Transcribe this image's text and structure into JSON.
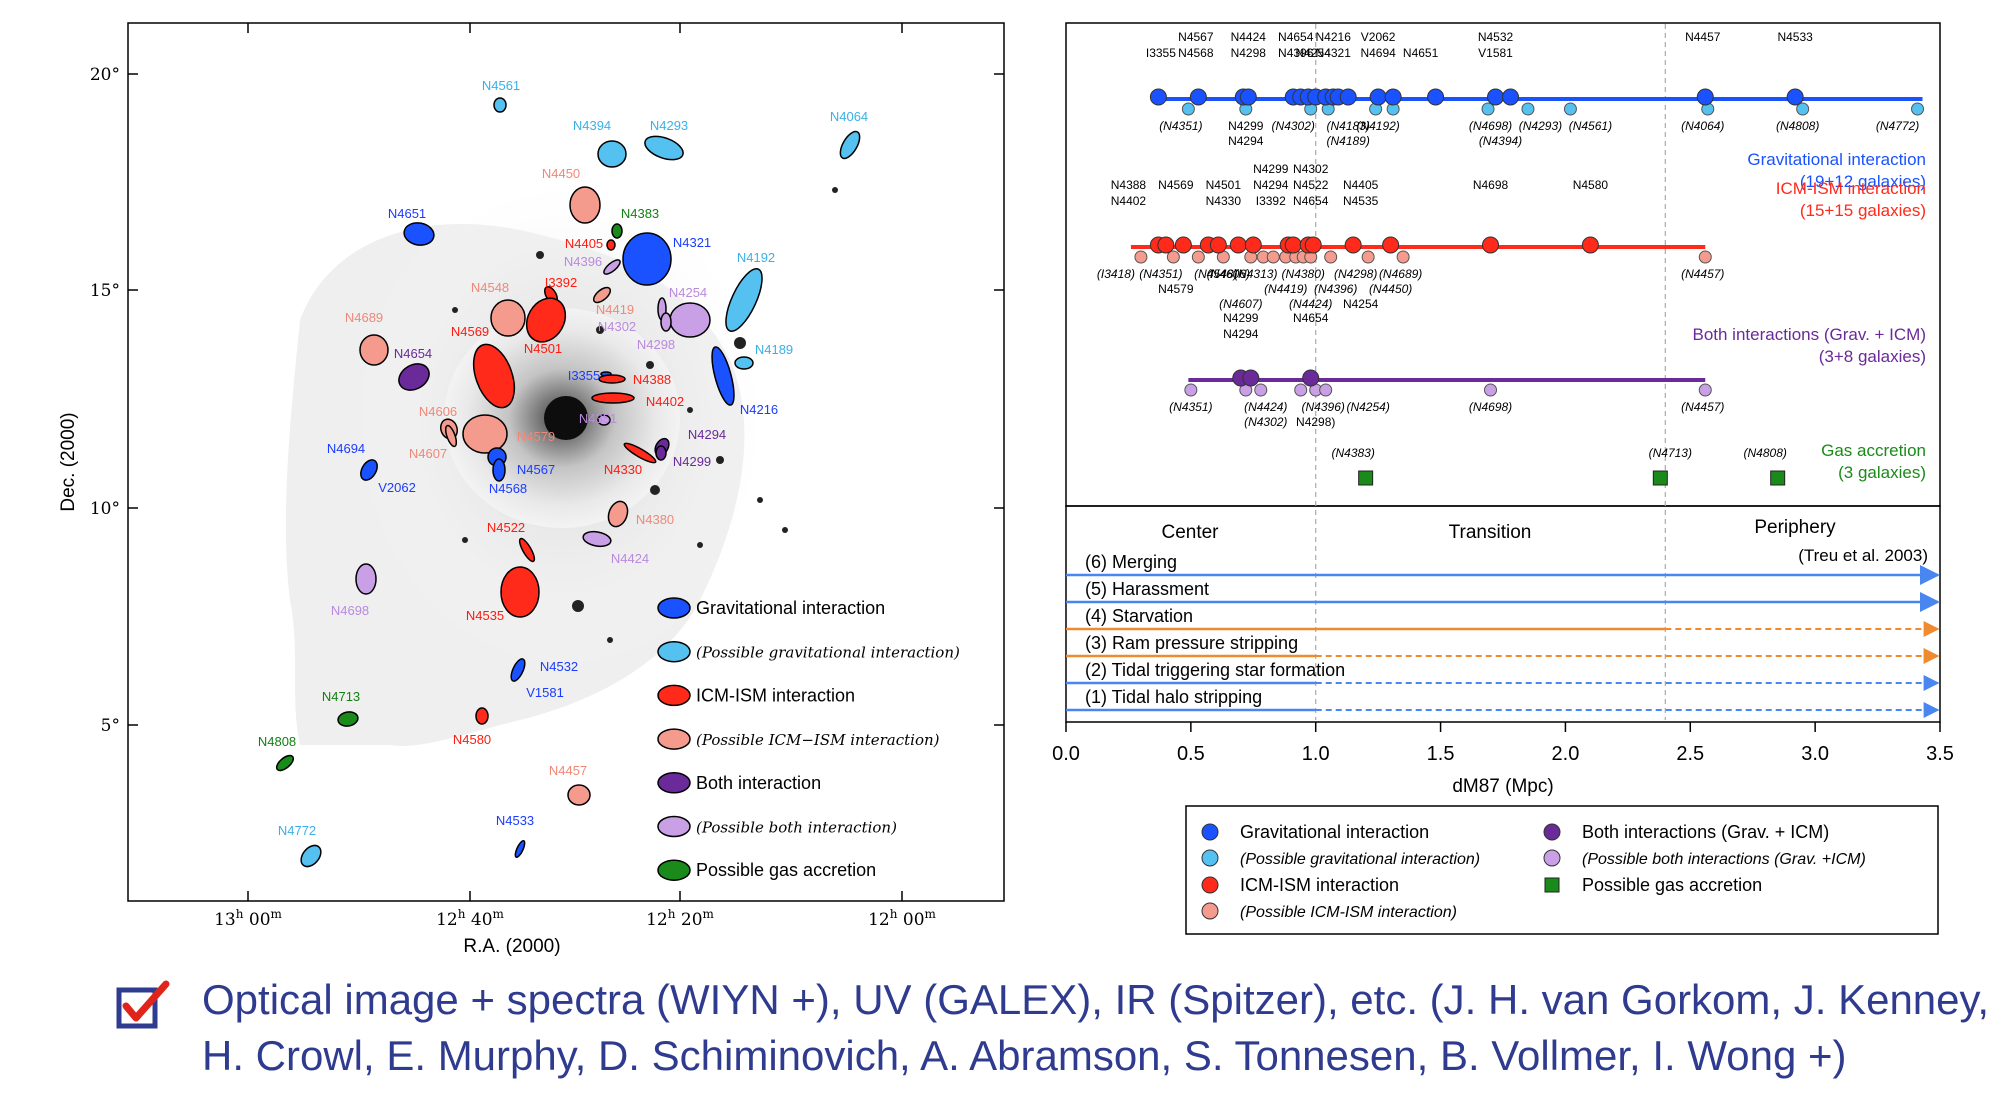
{
  "left_panel": {
    "xlabel": "R.A. (2000)",
    "ylabel": "Dec. (2000)",
    "yticks": [
      {
        "label": "20°",
        "dec": 20
      },
      {
        "label": "15°",
        "dec": 15
      },
      {
        "label": "10°",
        "dec": 10
      },
      {
        "label": "5°",
        "dec": 5
      }
    ],
    "xticks": [
      {
        "h": "13",
        "m": "00",
        "ra": 780
      },
      {
        "h": "12",
        "m": "40",
        "ra": 760
      },
      {
        "h": "12",
        "m": "20",
        "ra": 740
      },
      {
        "h": "12",
        "m": "00",
        "ra": 720
      }
    ],
    "hour_sup": "h",
    "min_sup": "m",
    "legend": [
      {
        "label": "Gravitational interaction",
        "italic": false,
        "color": "#1a52ff"
      },
      {
        "label": "(Possible gravitational interaction)",
        "italic": true,
        "color": "#55c1f0"
      },
      {
        "label": "ICM-ISM interaction",
        "italic": false,
        "color": "#ff2a1a"
      },
      {
        "label": "(Possible ICM−ISM interaction)",
        "italic": true,
        "color": "#f59b8e"
      },
      {
        "label": "Both interaction",
        "italic": false,
        "color": "#6a2a9a"
      },
      {
        "label": "(Possible both interaction)",
        "italic": true,
        "color": "#c9a0e6"
      },
      {
        "label": "Possible gas accretion",
        "italic": false,
        "color": "#1a8a1a"
      }
    ],
    "galaxies": [
      {
        "name": "N4561",
        "cls": "pg"
      },
      {
        "name": "N4394",
        "cls": "pg"
      },
      {
        "name": "N4293",
        "cls": "pg"
      },
      {
        "name": "N4064",
        "cls": "pg"
      },
      {
        "name": "N4651",
        "cls": "g"
      },
      {
        "name": "N4450",
        "cls": "pi"
      },
      {
        "name": "N4383",
        "cls": "a"
      },
      {
        "name": "N4405",
        "cls": "i"
      },
      {
        "name": "N4321",
        "cls": "g"
      },
      {
        "name": "N4396",
        "cls": "pb"
      },
      {
        "name": "N4192",
        "cls": "pg"
      },
      {
        "name": "N4548",
        "cls": "pi"
      },
      {
        "name": "I3392",
        "cls": "i"
      },
      {
        "name": "N4419",
        "cls": "pi"
      },
      {
        "name": "N4254",
        "cls": "pb"
      },
      {
        "name": "N4689",
        "cls": "pi"
      },
      {
        "name": "N4569",
        "cls": "i"
      },
      {
        "name": "N4501",
        "cls": "i"
      },
      {
        "name": "N4302",
        "cls": "pb"
      },
      {
        "name": "N4298",
        "cls": "pb"
      },
      {
        "name": "N4189",
        "cls": "pg"
      },
      {
        "name": "N4654",
        "cls": "b"
      },
      {
        "name": "I3355",
        "cls": "g"
      },
      {
        "name": "N4388",
        "cls": "i"
      },
      {
        "name": "N4216",
        "cls": "g"
      },
      {
        "name": "N4606",
        "cls": "pi"
      },
      {
        "name": "N4402",
        "cls": "i"
      },
      {
        "name": "N4351",
        "cls": "pb"
      },
      {
        "name": "N4294",
        "cls": "b"
      },
      {
        "name": "N4607",
        "cls": "pi"
      },
      {
        "name": "N4579",
        "cls": "pi"
      },
      {
        "name": "N4694",
        "cls": "g"
      },
      {
        "name": "N4299",
        "cls": "b"
      },
      {
        "name": "N4567",
        "cls": "g"
      },
      {
        "name": "N4330",
        "cls": "i"
      },
      {
        "name": "V2062",
        "cls": "g"
      },
      {
        "name": "N4568",
        "cls": "g"
      },
      {
        "name": "N4380",
        "cls": "pi"
      },
      {
        "name": "N4522",
        "cls": "i"
      },
      {
        "name": "N4424",
        "cls": "pb"
      },
      {
        "name": "N4698",
        "cls": "pb"
      },
      {
        "name": "N4535",
        "cls": "i"
      },
      {
        "name": "N4532",
        "cls": "g"
      },
      {
        "name": "V1581",
        "cls": "g"
      },
      {
        "name": "N4713",
        "cls": "a"
      },
      {
        "name": "N4580",
        "cls": "i"
      },
      {
        "name": "N4808",
        "cls": "a"
      },
      {
        "name": "N4457",
        "cls": "pi"
      },
      {
        "name": "N4533",
        "cls": "g"
      },
      {
        "name": "N4772",
        "cls": "pg"
      }
    ]
  },
  "chart_data": {
    "type": "scatter",
    "xlabel": "dM87 (Mpc)",
    "xlim": [
      0,
      3.5
    ],
    "xticks": [
      "0.0",
      "0.5",
      "1.0",
      "1.5",
      "2.0",
      "2.5",
      "3.0",
      "3.5"
    ],
    "zone_boundaries": [
      1.0,
      2.4
    ],
    "zones": [
      "Center",
      "Transition",
      "Periphery"
    ],
    "series": [
      {
        "name": "Gravitational interaction",
        "count": "(19+12 galaxies)",
        "color": "#1a52ff",
        "line_x": [
          0.35,
          3.43
        ],
        "above_labels": [
          {
            "x": 0.52,
            "lines": [
              "N4567",
              "N4568"
            ]
          },
          {
            "x": 0.38,
            "lines": [
              "",
              "I3355"
            ]
          },
          {
            "x": 0.73,
            "lines": [
              "N4424",
              "N4298"
            ]
          },
          {
            "x": 0.92,
            "lines": [
              "N4654",
              "N4396"
            ]
          },
          {
            "x": 1.07,
            "lines": [
              "N4216",
              "N4321"
            ]
          },
          {
            "x": 1.25,
            "lines": [
              "V2062",
              "N4694"
            ]
          },
          {
            "x": 1.42,
            "lines": [
              "",
              "N4651"
            ]
          },
          {
            "x": 1.72,
            "lines": [
              "N4532",
              "V1581"
            ]
          },
          {
            "x": 0.99,
            "lines": [
              "",
              "",
              "N4254"
            ]
          },
          {
            "x": 2.55,
            "lines": [
              "N4457"
            ]
          },
          {
            "x": 2.92,
            "lines": [
              "N4533"
            ]
          }
        ],
        "below_labels": [
          {
            "x": 0.46,
            "text": "(N4351)"
          },
          {
            "x": 0.72,
            "text": "N4299"
          },
          {
            "x": 0.72,
            "text": "N4294",
            "row": 2
          },
          {
            "x": 0.91,
            "text": "(N4302)"
          },
          {
            "x": 1.13,
            "text": "(N4183)"
          },
          {
            "x": 1.25,
            "text": "(N4192)"
          },
          {
            "x": 1.13,
            "text": "(N4189)",
            "row": 2
          },
          {
            "x": 1.7,
            "text": "(N4698)"
          },
          {
            "x": 1.9,
            "text": "(N4293)"
          },
          {
            "x": 2.1,
            "text": "(N4561)"
          },
          {
            "x": 1.74,
            "text": "(N4394)",
            "row": 2
          },
          {
            "x": 2.55,
            "text": "(N4064)"
          },
          {
            "x": 2.93,
            "text": "(N4808)"
          },
          {
            "x": 3.33,
            "text": "(N4772)"
          }
        ],
        "points": [
          0.37,
          0.53,
          0.71,
          0.73,
          0.91,
          0.94,
          0.97,
          1.0,
          1.04,
          1.07,
          1.09,
          1.13,
          1.25,
          1.31,
          1.48,
          1.72,
          1.78,
          2.56,
          2.92
        ],
        "possible": [
          0.49,
          0.72,
          0.98,
          1.05,
          1.24,
          1.31,
          1.69,
          1.85,
          2.02,
          2.57,
          2.95,
          3.41
        ]
      },
      {
        "name": "ICM-ISM interaction",
        "count": "(15+15 galaxies)",
        "color": "#ff2a1a",
        "line_x": [
          0.26,
          2.56
        ],
        "above_labels": [
          {
            "x": 0.25,
            "lines": [
              "N4388",
              "N4402"
            ]
          },
          {
            "x": 0.44,
            "lines": [
              "N4569",
              ""
            ]
          },
          {
            "x": 0.63,
            "lines": [
              "N4501",
              "N4330"
            ]
          },
          {
            "x": 0.82,
            "lines": [
              "N4299",
              "N4294",
              "I3392"
            ]
          },
          {
            "x": 0.98,
            "lines": [
              "N4302",
              "N4522",
              "N4654"
            ]
          },
          {
            "x": 1.18,
            "lines": [
              "N4405",
              "N4535"
            ]
          },
          {
            "x": 1.7,
            "lines": [
              "N4698"
            ]
          },
          {
            "x": 2.1,
            "lines": [
              "N4580"
            ]
          }
        ],
        "below_labels": [
          {
            "x": 0.2,
            "text": "(I3418)"
          },
          {
            "x": 0.38,
            "text": "(N4351)"
          },
          {
            "x": 0.6,
            "text": "(N4548)"
          },
          {
            "x": 0.76,
            "text": "(N4313)"
          },
          {
            "x": 0.95,
            "text": "(N4380)"
          },
          {
            "x": 1.16,
            "text": "(N4298)"
          },
          {
            "x": 1.34,
            "text": "(N4689)"
          },
          {
            "x": 0.44,
            "text": "N4579",
            "row": 2
          },
          {
            "x": 0.65,
            "text": "(N4606)"
          },
          {
            "x": 0.88,
            "text": "(N4419)",
            "row": 2
          },
          {
            "x": 1.08,
            "text": "(N4396)",
            "row": 2
          },
          {
            "x": 1.3,
            "text": "(N4450)",
            "row": 2
          },
          {
            "x": 0.7,
            "text": "(N4607)",
            "row": 3
          },
          {
            "x": 0.98,
            "text": "(N4424)",
            "row": 3
          },
          {
            "x": 1.18,
            "text": "N4254",
            "row": 3
          },
          {
            "x": 2.55,
            "text": "(N4457)"
          }
        ],
        "points": [
          0.37,
          0.4,
          0.47,
          0.57,
          0.61,
          0.69,
          0.75,
          0.89,
          0.91,
          0.97,
          0.99,
          1.15,
          1.3,
          1.7,
          2.1
        ],
        "possible": [
          0.3,
          0.43,
          0.53,
          0.63,
          0.74,
          0.79,
          0.83,
          0.88,
          0.92,
          0.95,
          0.98,
          1.06,
          1.21,
          1.35,
          2.56
        ]
      },
      {
        "name": "Both interactions (Grav. + ICM)",
        "count": "(3+8 galaxies)",
        "color": "#6a2a9a",
        "line_x": [
          0.49,
          2.56
        ],
        "above_labels": [
          {
            "x": 0.7,
            "lines": [
              "N4299",
              "N4294"
            ]
          },
          {
            "x": 0.98,
            "lines": [
              "N4654"
            ]
          }
        ],
        "below_labels": [
          {
            "x": 0.5,
            "text": "(N4351)"
          },
          {
            "x": 0.8,
            "text": "(N4424)"
          },
          {
            "x": 0.8,
            "text": "(N4302)",
            "row": 2
          },
          {
            "x": 1.03,
            "text": "(N4396)"
          },
          {
            "x": 1.0,
            "text": "N4298)",
            "row": 2
          },
          {
            "x": 1.21,
            "text": "(N4254)"
          },
          {
            "x": 1.7,
            "text": "(N4698)"
          },
          {
            "x": 2.55,
            "text": "(N4457)"
          }
        ],
        "points": [
          0.7,
          0.74,
          0.98
        ],
        "possible": [
          0.5,
          0.72,
          0.78,
          0.94,
          1.0,
          1.04,
          1.7,
          2.56
        ]
      },
      {
        "name": "Gas accretion",
        "count": "(3 galaxies)",
        "color": "#1a8a1a",
        "above_labels": [
          {
            "x": 1.15,
            "text": "(N4383)"
          },
          {
            "x": 2.42,
            "text": "(N4713)"
          },
          {
            "x": 2.8,
            "text": "(N4808)"
          }
        ],
        "points": [
          1.2,
          2.38,
          2.85
        ]
      }
    ],
    "mechanisms": [
      {
        "label": "(6) Merging",
        "color": "#4a86f0",
        "solid_to": 3.5,
        "dash_to": 3.5
      },
      {
        "label": "(5) Harassment",
        "color": "#4a86f0",
        "solid_to": 3.5,
        "dash_to": 3.5
      },
      {
        "label": "(4) Starvation",
        "color": "#ef8a2e",
        "solid_to": 2.4,
        "dash_to": 3.5
      },
      {
        "label": "(3) Ram pressure stripping",
        "color": "#ef8a2e",
        "solid_to": 1.0,
        "dash_to": 3.5
      },
      {
        "label": "(2) Tidal triggering star formation",
        "color": "#4a86f0",
        "solid_to": 1.0,
        "dash_to": 3.5
      },
      {
        "label": "(1) Tidal halo stripping",
        "color": "#4a86f0",
        "solid_to": 1.0,
        "dash_to": 3.5
      }
    ],
    "reference": "(Treu et al. 2003)",
    "legend": [
      {
        "label": "Gravitational interaction",
        "italic": false,
        "color": "#1a52ff",
        "shape": "circle"
      },
      {
        "label": "(Possible gravitational interaction)",
        "italic": true,
        "color": "#55c1f0",
        "shape": "circle"
      },
      {
        "label": "ICM-ISM interaction",
        "italic": false,
        "color": "#ff2a1a",
        "shape": "circle"
      },
      {
        "label": "(Possible ICM-ISM interaction)",
        "italic": true,
        "color": "#f59b8e",
        "shape": "circle"
      },
      {
        "label": "Both interactions (Grav. + ICM)",
        "italic": false,
        "color": "#6a2a9a",
        "shape": "circle"
      },
      {
        "label": "(Possible both interactions (Grav. +ICM)",
        "italic": true,
        "color": "#c9a0e6",
        "shape": "circle"
      },
      {
        "label": "Possible gas accretion",
        "italic": false,
        "color": "#1a8a1a",
        "shape": "square"
      }
    ]
  },
  "caption": {
    "line1": "Optical image + spectra (WIYN +), UV (GALEX), IR (Spitzer), etc. (J. H. van Gorkom, J. Kenney,",
    "line2": "H. Crowl, E. Murphy, D. Schiminovich, A. Abramson, S. Tonnesen, B. Vollmer, I. Wong +)"
  }
}
